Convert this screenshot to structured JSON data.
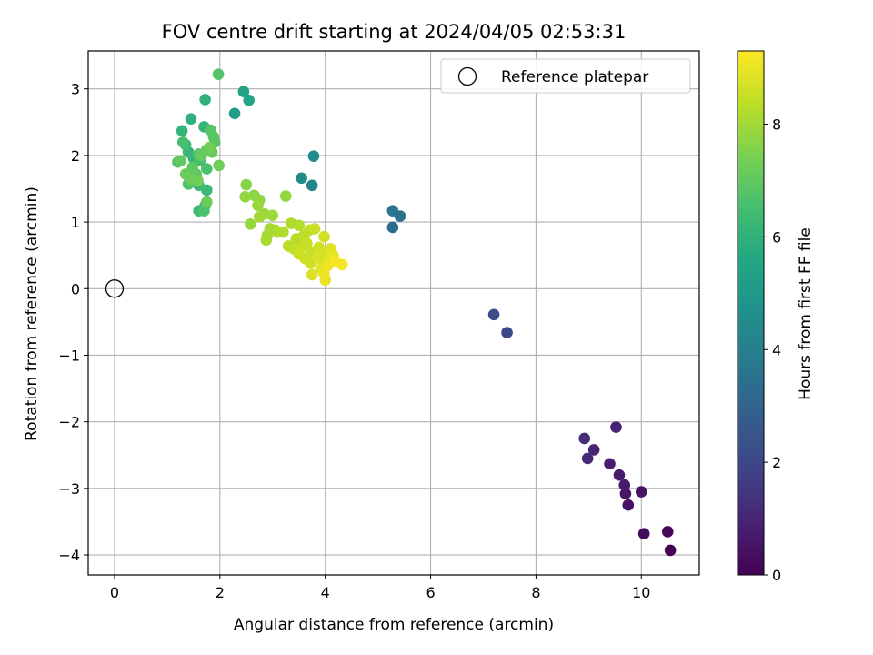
{
  "chart_data": {
    "type": "scatter",
    "title": "FOV centre drift starting at 2024/04/05 02:53:31",
    "xlabel": "Angular distance from reference (arcmin)",
    "ylabel": "Rotation from reference (arcmin)",
    "xlim": [
      -0.5,
      11.1
    ],
    "ylim": [
      -4.3,
      3.57
    ],
    "xticks": [
      0,
      2,
      4,
      6,
      8,
      10
    ],
    "yticks": [
      3,
      2,
      1,
      0,
      -1,
      -2,
      -3,
      -4
    ],
    "xtick_labels": [
      "0",
      "2",
      "4",
      "6",
      "8",
      "10"
    ],
    "ytick_labels": [
      "3",
      "2",
      "1",
      "0",
      "−1",
      "−2",
      "−3",
      "−4"
    ],
    "grid": true,
    "legend": {
      "position": "top-right",
      "entries": [
        "Reference platepar"
      ]
    },
    "reference_point": {
      "x": 0,
      "y": 0
    },
    "colorbar": {
      "label": "Hours from first FF file",
      "colormap": "viridis",
      "range": [
        0,
        9.3
      ],
      "ticks": [
        0,
        2,
        4,
        6,
        8
      ],
      "tick_labels": [
        "0",
        "2",
        "4",
        "6",
        "8"
      ]
    },
    "series": [
      {
        "points": [
          {
            "x": 10.55,
            "y": -3.93,
            "c": 0.05
          },
          {
            "x": 10.5,
            "y": -3.65,
            "c": 0.2
          },
          {
            "x": 10.05,
            "y": -3.68,
            "c": 0.3
          },
          {
            "x": 9.75,
            "y": -3.25,
            "c": 0.45
          },
          {
            "x": 10.0,
            "y": -3.05,
            "c": 0.5
          },
          {
            "x": 9.7,
            "y": -3.08,
            "c": 0.55
          },
          {
            "x": 9.68,
            "y": -2.95,
            "c": 0.65
          },
          {
            "x": 9.58,
            "y": -2.8,
            "c": 0.7
          },
          {
            "x": 9.4,
            "y": -2.63,
            "c": 0.8
          },
          {
            "x": 9.52,
            "y": -2.08,
            "c": 0.9
          },
          {
            "x": 9.1,
            "y": -2.42,
            "c": 1.0
          },
          {
            "x": 8.98,
            "y": -2.55,
            "c": 1.1
          },
          {
            "x": 8.92,
            "y": -2.25,
            "c": 1.2
          },
          {
            "x": 7.45,
            "y": -0.66,
            "c": 2.0
          },
          {
            "x": 7.2,
            "y": -0.39,
            "c": 2.2
          },
          {
            "x": 5.28,
            "y": 0.92,
            "c": 3.3
          },
          {
            "x": 5.42,
            "y": 1.09,
            "c": 3.5
          },
          {
            "x": 5.28,
            "y": 1.17,
            "c": 3.6
          },
          {
            "x": 3.75,
            "y": 1.55,
            "c": 4.2
          },
          {
            "x": 3.55,
            "y": 1.66,
            "c": 4.4
          },
          {
            "x": 3.78,
            "y": 1.99,
            "c": 4.5
          },
          {
            "x": 2.28,
            "y": 2.63,
            "c": 5.2
          },
          {
            "x": 2.45,
            "y": 2.96,
            "c": 5.4
          },
          {
            "x": 2.55,
            "y": 2.83,
            "c": 5.5
          },
          {
            "x": 1.45,
            "y": 2.55,
            "c": 5.9
          },
          {
            "x": 1.72,
            "y": 2.84,
            "c": 6.0
          },
          {
            "x": 1.28,
            "y": 2.37,
            "c": 6.1
          },
          {
            "x": 1.7,
            "y": 2.43,
            "c": 6.1
          },
          {
            "x": 1.4,
            "y": 2.05,
            "c": 6.2
          },
          {
            "x": 1.5,
            "y": 1.96,
            "c": 6.2
          },
          {
            "x": 1.6,
            "y": 1.17,
            "c": 6.3
          },
          {
            "x": 1.75,
            "y": 1.48,
            "c": 6.3
          },
          {
            "x": 1.6,
            "y": 1.55,
            "c": 6.35
          },
          {
            "x": 1.72,
            "y": 1.25,
            "c": 6.4
          },
          {
            "x": 1.35,
            "y": 2.16,
            "c": 6.4
          },
          {
            "x": 1.45,
            "y": 1.72,
            "c": 6.5
          },
          {
            "x": 1.62,
            "y": 1.92,
            "c": 6.5
          },
          {
            "x": 1.3,
            "y": 2.2,
            "c": 6.55
          },
          {
            "x": 1.75,
            "y": 1.8,
            "c": 6.6
          },
          {
            "x": 1.5,
            "y": 1.65,
            "c": 6.6
          },
          {
            "x": 1.7,
            "y": 1.17,
            "c": 6.65
          },
          {
            "x": 1.4,
            "y": 1.57,
            "c": 6.7
          },
          {
            "x": 1.2,
            "y": 1.9,
            "c": 6.7
          },
          {
            "x": 1.97,
            "y": 3.22,
            "c": 6.75
          },
          {
            "x": 1.82,
            "y": 2.38,
            "c": 6.8
          },
          {
            "x": 1.9,
            "y": 2.2,
            "c": 6.8
          },
          {
            "x": 1.6,
            "y": 2.02,
            "c": 6.85
          },
          {
            "x": 1.75,
            "y": 2.08,
            "c": 6.9
          },
          {
            "x": 1.88,
            "y": 2.28,
            "c": 6.9
          },
          {
            "x": 1.55,
            "y": 1.72,
            "c": 7.0
          },
          {
            "x": 1.48,
            "y": 1.82,
            "c": 7.0
          },
          {
            "x": 1.25,
            "y": 1.92,
            "c": 7.05
          },
          {
            "x": 1.65,
            "y": 2.0,
            "c": 7.1
          },
          {
            "x": 1.85,
            "y": 2.05,
            "c": 7.1
          },
          {
            "x": 1.35,
            "y": 1.72,
            "c": 7.15
          },
          {
            "x": 1.45,
            "y": 1.65,
            "c": 7.2
          },
          {
            "x": 1.75,
            "y": 1.3,
            "c": 7.2
          },
          {
            "x": 1.98,
            "y": 1.85,
            "c": 7.25
          },
          {
            "x": 1.58,
            "y": 1.62,
            "c": 7.3
          },
          {
            "x": 1.8,
            "y": 2.12,
            "c": 7.3
          },
          {
            "x": 2.5,
            "y": 1.56,
            "c": 7.6
          },
          {
            "x": 2.65,
            "y": 1.4,
            "c": 7.7
          },
          {
            "x": 2.75,
            "y": 1.33,
            "c": 7.75
          },
          {
            "x": 2.48,
            "y": 1.38,
            "c": 7.8
          },
          {
            "x": 3.25,
            "y": 1.39,
            "c": 7.8
          },
          {
            "x": 2.58,
            "y": 0.97,
            "c": 7.85
          },
          {
            "x": 2.72,
            "y": 1.25,
            "c": 7.9
          },
          {
            "x": 2.85,
            "y": 1.12,
            "c": 7.9
          },
          {
            "x": 3.0,
            "y": 1.1,
            "c": 7.95
          },
          {
            "x": 2.75,
            "y": 1.08,
            "c": 8.0
          },
          {
            "x": 2.9,
            "y": 0.8,
            "c": 8.0
          },
          {
            "x": 2.95,
            "y": 0.9,
            "c": 8.05
          },
          {
            "x": 3.05,
            "y": 0.88,
            "c": 8.1
          },
          {
            "x": 2.88,
            "y": 0.73,
            "c": 8.1
          },
          {
            "x": 3.1,
            "y": 0.85,
            "c": 8.15
          },
          {
            "x": 3.2,
            "y": 0.85,
            "c": 8.2
          },
          {
            "x": 3.35,
            "y": 0.98,
            "c": 8.2
          },
          {
            "x": 3.5,
            "y": 0.95,
            "c": 8.25
          },
          {
            "x": 3.3,
            "y": 0.64,
            "c": 8.3
          },
          {
            "x": 3.45,
            "y": 0.75,
            "c": 8.3
          },
          {
            "x": 3.6,
            "y": 0.8,
            "c": 8.35
          },
          {
            "x": 3.7,
            "y": 0.88,
            "c": 8.4
          },
          {
            "x": 3.4,
            "y": 0.6,
            "c": 8.4
          },
          {
            "x": 3.55,
            "y": 0.62,
            "c": 8.45
          },
          {
            "x": 3.65,
            "y": 0.68,
            "c": 8.5
          },
          {
            "x": 3.75,
            "y": 0.55,
            "c": 8.5
          },
          {
            "x": 3.5,
            "y": 0.52,
            "c": 8.55
          },
          {
            "x": 3.8,
            "y": 0.9,
            "c": 8.55
          },
          {
            "x": 3.62,
            "y": 0.45,
            "c": 8.6
          },
          {
            "x": 3.72,
            "y": 0.38,
            "c": 8.6
          },
          {
            "x": 3.88,
            "y": 0.62,
            "c": 8.65
          },
          {
            "x": 3.98,
            "y": 0.78,
            "c": 8.65
          },
          {
            "x": 4.02,
            "y": 0.55,
            "c": 8.7
          },
          {
            "x": 3.85,
            "y": 0.48,
            "c": 8.75
          },
          {
            "x": 3.95,
            "y": 0.4,
            "c": 8.75
          },
          {
            "x": 3.75,
            "y": 0.21,
            "c": 8.8
          },
          {
            "x": 4.1,
            "y": 0.6,
            "c": 8.85
          },
          {
            "x": 4.08,
            "y": 0.45,
            "c": 8.85
          },
          {
            "x": 3.92,
            "y": 0.3,
            "c": 8.9
          },
          {
            "x": 4.15,
            "y": 0.5,
            "c": 8.95
          },
          {
            "x": 4.0,
            "y": 0.13,
            "c": 9.0
          },
          {
            "x": 3.98,
            "y": 0.22,
            "c": 9.05
          },
          {
            "x": 4.05,
            "y": 0.35,
            "c": 9.1
          },
          {
            "x": 4.32,
            "y": 0.36,
            "c": 9.15
          },
          {
            "x": 4.18,
            "y": 0.42,
            "c": 9.2
          }
        ]
      }
    ]
  }
}
